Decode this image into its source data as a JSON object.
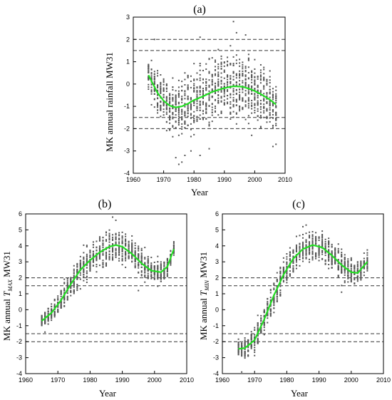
{
  "chart_data": [
    {
      "type": "scatter",
      "panel_label": "(a)",
      "xlabel": "Year",
      "ylabel": "MK annual rainfall MW31",
      "ylabel_sub": "",
      "ylabel_suffix": "",
      "xlim": [
        1960,
        2010
      ],
      "ylim": [
        -4,
        3
      ],
      "xticks": [
        1960,
        1970,
        1980,
        1990,
        2000,
        2010
      ],
      "yticks": [
        -4,
        -3,
        -2,
        -1,
        0,
        1,
        2,
        3
      ],
      "x_range": [
        1965,
        2007
      ],
      "ref_lines": [
        2,
        1.5,
        -1.5,
        -2
      ],
      "trend": {
        "x": [
          1965,
          1968,
          1970,
          1972,
          1974,
          1976,
          1978,
          1980,
          1983,
          1986,
          1990,
          1993,
          1996,
          1999,
          2002,
          2005,
          2007
        ],
        "y": [
          0.4,
          -0.4,
          -0.75,
          -0.97,
          -1.05,
          -1.0,
          -0.88,
          -0.72,
          -0.55,
          -0.35,
          -0.18,
          -0.1,
          -0.12,
          -0.25,
          -0.45,
          -0.7,
          -0.92
        ]
      },
      "spread": [
        [
          1965,
          0.7
        ],
        [
          1970,
          0.85
        ],
        [
          1975,
          1.0
        ],
        [
          1980,
          1.15
        ],
        [
          1985,
          1.3
        ],
        [
          1990,
          1.35
        ],
        [
          1995,
          1.3
        ],
        [
          2000,
          1.15
        ],
        [
          2007,
          1.0
        ]
      ],
      "extremes": [
        {
          "x": 1993,
          "y": 2.8
        },
        {
          "x": 1994,
          "y": 2.3
        },
        {
          "x": 1982,
          "y": 2.1
        },
        {
          "x": 1967,
          "y": 2.0
        },
        {
          "x": 1997,
          "y": 2.2
        },
        {
          "x": 1975,
          "y": -3.6
        },
        {
          "x": 1976,
          "y": -3.5
        },
        {
          "x": 1977,
          "y": -3.2
        },
        {
          "x": 1974,
          "y": -3.3
        },
        {
          "x": 1982,
          "y": -3.2
        },
        {
          "x": 1979,
          "y": -3.0
        },
        {
          "x": 1985,
          "y": -2.9
        },
        {
          "x": 2006,
          "y": -2.8
        },
        {
          "x": 2007,
          "y": -2.7
        },
        {
          "x": 1999,
          "y": -2.3
        }
      ]
    },
    {
      "type": "scatter",
      "panel_label": "(b)",
      "xlabel": "Year",
      "ylabel": "MK annual ",
      "ylabel_sub": "MAX",
      "ylabel_suffix": " MW31",
      "xlim": [
        1960,
        2010
      ],
      "ylim": [
        -4,
        6
      ],
      "xticks": [
        1960,
        1970,
        1980,
        1990,
        2000,
        2010
      ],
      "yticks": [
        -4,
        -3,
        -2,
        -1,
        0,
        1,
        2,
        3,
        4,
        5,
        6
      ],
      "x_range": [
        1965,
        2006
      ],
      "ref_lines": [
        2,
        1.5,
        -1.5,
        -2
      ],
      "trend": {
        "x": [
          1965,
          1968,
          1971,
          1974,
          1977,
          1980,
          1983,
          1986,
          1988,
          1990,
          1993,
          1996,
          1999,
          2002,
          2004,
          2006
        ],
        "y": [
          -0.7,
          -0.2,
          0.6,
          1.6,
          2.5,
          3.1,
          3.6,
          3.95,
          4.05,
          3.95,
          3.5,
          2.9,
          2.45,
          2.35,
          2.7,
          3.8
        ]
      },
      "spread": [
        [
          1965,
          0.4
        ],
        [
          1975,
          0.8
        ],
        [
          1985,
          0.9
        ],
        [
          1995,
          0.8
        ],
        [
          2006,
          0.45
        ]
      ],
      "extremes": [
        {
          "x": 1987,
          "y": 5.8
        },
        {
          "x": 1988,
          "y": 5.6
        },
        {
          "x": 1995,
          "y": 1.2
        },
        {
          "x": 1966,
          "y": -1.4
        }
      ]
    },
    {
      "type": "scatter",
      "panel_label": "(c)",
      "xlabel": "Year",
      "ylabel": "MK annual ",
      "ylabel_sub": "MIN",
      "ylabel_suffix": " MW31",
      "xlim": [
        1960,
        2010
      ],
      "ylim": [
        -4,
        6
      ],
      "xticks": [
        1960,
        1970,
        1980,
        1990,
        2000,
        2010
      ],
      "yticks": [
        -4,
        -3,
        -2,
        -1,
        0,
        1,
        2,
        3,
        4,
        5,
        6
      ],
      "x_range": [
        1965,
        2005
      ],
      "ref_lines": [
        2,
        1.5,
        -1.5,
        -2
      ],
      "trend": {
        "x": [
          1965,
          1967,
          1970,
          1973,
          1976,
          1979,
          1982,
          1985,
          1988,
          1991,
          1994,
          1997,
          2000,
          2002,
          2005
        ],
        "y": [
          -2.45,
          -2.4,
          -1.9,
          -0.6,
          0.9,
          2.2,
          3.2,
          3.8,
          4.05,
          3.9,
          3.4,
          2.8,
          2.35,
          2.3,
          3.0
        ]
      },
      "spread": [
        [
          1965,
          0.5
        ],
        [
          1975,
          0.9
        ],
        [
          1985,
          0.8
        ],
        [
          1995,
          0.85
        ],
        [
          2005,
          0.45
        ]
      ],
      "extremes": [
        {
          "x": 1985,
          "y": 5.2
        },
        {
          "x": 1986,
          "y": 5.3
        },
        {
          "x": 1997,
          "y": 1.1
        },
        {
          "x": 1966,
          "y": -3.9
        }
      ]
    }
  ]
}
